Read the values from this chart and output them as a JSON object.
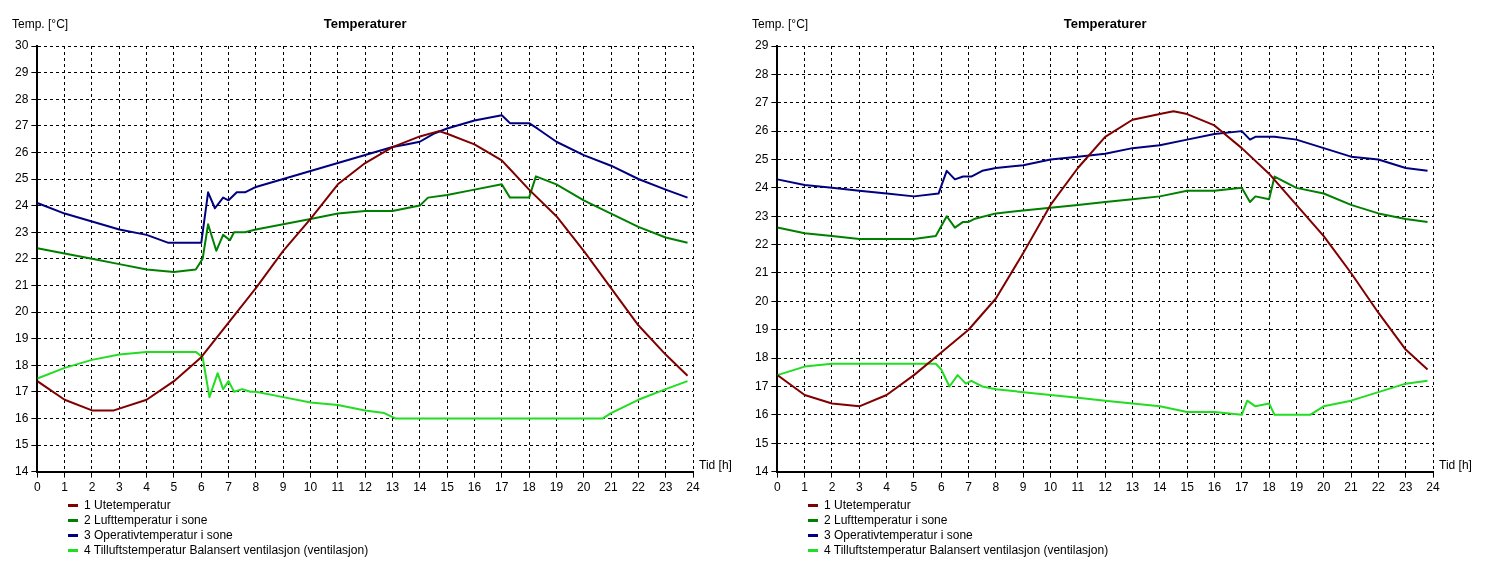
{
  "chart_data": [
    {
      "type": "line",
      "title": "Temperaturer",
      "xlabel": "Tid [h]",
      "ylabel": "Temp. [°C]",
      "xlim": [
        0,
        24
      ],
      "xticks": [
        0,
        1,
        2,
        3,
        4,
        5,
        6,
        7,
        8,
        9,
        10,
        11,
        12,
        13,
        14,
        15,
        16,
        17,
        18,
        19,
        20,
        21,
        22,
        23,
        24
      ],
      "ylim": [
        14,
        30
      ],
      "yticks": [
        14,
        15,
        16,
        17,
        18,
        19,
        20,
        21,
        22,
        23,
        24,
        25,
        26,
        27,
        28,
        29,
        30
      ],
      "grid": true,
      "legend": "bottom left",
      "series": [
        {
          "name": "1 Utetemperatur",
          "color": "#800000",
          "x": [
            0,
            1,
            2,
            2.8,
            4,
            5,
            6,
            7,
            8,
            9,
            10,
            11,
            12,
            13,
            14,
            14.7,
            15,
            16,
            17,
            18,
            19,
            20,
            21,
            22,
            23,
            23.8
          ],
          "values": [
            17.4,
            16.7,
            16.3,
            16.3,
            16.7,
            17.4,
            18.3,
            19.6,
            20.9,
            22.3,
            23.5,
            24.8,
            25.6,
            26.2,
            26.6,
            26.8,
            26.7,
            26.3,
            25.7,
            24.6,
            23.6,
            22.3,
            20.9,
            19.5,
            18.4,
            17.6
          ]
        },
        {
          "name": "2 Lufttemperatur i sone",
          "color": "#008000",
          "x": [
            0,
            1,
            2,
            3,
            4,
            5,
            5.8,
            6.05,
            6.25,
            6.55,
            6.8,
            7.05,
            7.2,
            7.6,
            8,
            9,
            10,
            11,
            12,
            13,
            14,
            14.3,
            15,
            16,
            17,
            17.3,
            18,
            18.25,
            19,
            20,
            21,
            22,
            23,
            23.8
          ],
          "values": [
            22.4,
            22.2,
            22.0,
            21.8,
            21.6,
            21.5,
            21.6,
            22.0,
            23.3,
            22.3,
            22.9,
            22.7,
            23.0,
            23.0,
            23.1,
            23.3,
            23.5,
            23.7,
            23.8,
            23.8,
            24.0,
            24.3,
            24.4,
            24.6,
            24.8,
            24.3,
            24.3,
            25.1,
            24.8,
            24.2,
            23.7,
            23.2,
            22.8,
            22.6
          ]
        },
        {
          "name": "3 Operativtemperatur i sone",
          "color": "#000080",
          "x": [
            0,
            1,
            2,
            3,
            4,
            4.8,
            6.0,
            6.25,
            6.5,
            6.8,
            7,
            7.3,
            7.6,
            8,
            9,
            10,
            11,
            12,
            13,
            13.5,
            14,
            14.5,
            15,
            16,
            17,
            17.3,
            18,
            18.3,
            19,
            20,
            21,
            22,
            23,
            23.8
          ],
          "values": [
            24.1,
            23.7,
            23.4,
            23.1,
            22.9,
            22.6,
            22.6,
            24.5,
            23.9,
            24.3,
            24.2,
            24.5,
            24.5,
            24.7,
            25.0,
            25.3,
            25.6,
            25.9,
            26.2,
            26.3,
            26.4,
            26.7,
            26.9,
            27.2,
            27.4,
            27.1,
            27.1,
            26.9,
            26.4,
            25.9,
            25.5,
            25.0,
            24.6,
            24.3
          ]
        },
        {
          "name": "4 Tilluftstemperatur Balansert ventilasjon (ventilasjon)",
          "color": "#22dd22",
          "x": [
            0,
            1,
            2,
            3,
            4,
            5,
            5.8,
            6.05,
            6.3,
            6.6,
            6.8,
            7.0,
            7.2,
            7.5,
            7.8,
            8,
            9,
            10,
            11,
            12,
            12.7,
            13.1,
            20.7,
            21,
            22,
            23,
            23.8
          ],
          "values": [
            17.5,
            17.9,
            18.2,
            18.4,
            18.5,
            18.5,
            18.5,
            18.3,
            16.8,
            17.7,
            17.1,
            17.4,
            17.0,
            17.1,
            17.0,
            17.0,
            16.8,
            16.6,
            16.5,
            16.3,
            16.2,
            16.0,
            16.0,
            16.2,
            16.7,
            17.1,
            17.4
          ]
        }
      ]
    },
    {
      "type": "line",
      "title": "Temperaturer",
      "xlabel": "Tid [h]",
      "ylabel": "Temp. [°C]",
      "xlim": [
        0,
        24
      ],
      "xticks": [
        0,
        1,
        2,
        3,
        4,
        5,
        6,
        7,
        8,
        9,
        10,
        11,
        12,
        13,
        14,
        15,
        16,
        17,
        18,
        19,
        20,
        21,
        22,
        23,
        24
      ],
      "ylim": [
        14,
        29
      ],
      "yticks": [
        14,
        15,
        16,
        17,
        18,
        19,
        20,
        21,
        22,
        23,
        24,
        25,
        26,
        27,
        28,
        29
      ],
      "grid": true,
      "legend": "bottom left",
      "series": [
        {
          "name": "1 Utetemperatur",
          "color": "#800000",
          "x": [
            0,
            1,
            2,
            3,
            4,
            5,
            6,
            7,
            8,
            9,
            10,
            11,
            12,
            13,
            14,
            14.5,
            15,
            16,
            17,
            18,
            19,
            20,
            21,
            22,
            23,
            23.8
          ],
          "values": [
            17.4,
            16.7,
            16.4,
            16.3,
            16.7,
            17.4,
            18.2,
            19.0,
            20.1,
            21.7,
            23.4,
            24.7,
            25.8,
            26.4,
            26.6,
            26.7,
            26.6,
            26.2,
            25.4,
            24.5,
            23.4,
            22.3,
            21.0,
            19.6,
            18.3,
            17.6
          ]
        },
        {
          "name": "2 Lufttemperatur i sone",
          "color": "#008000",
          "x": [
            0,
            1,
            2,
            3,
            4,
            5,
            5.8,
            6.2,
            6.5,
            6.8,
            7,
            7.2,
            8,
            9,
            10,
            11,
            12,
            13,
            14,
            15,
            16,
            17,
            17.3,
            17.5,
            18,
            18.2,
            19,
            20,
            21,
            22,
            23,
            23.8
          ],
          "values": [
            22.6,
            22.4,
            22.3,
            22.2,
            22.2,
            22.2,
            22.3,
            23.0,
            22.6,
            22.8,
            22.8,
            22.9,
            23.1,
            23.2,
            23.3,
            23.4,
            23.5,
            23.6,
            23.7,
            23.9,
            23.9,
            24.0,
            23.5,
            23.7,
            23.6,
            24.4,
            24.0,
            23.8,
            23.4,
            23.1,
            22.9,
            22.8
          ]
        },
        {
          "name": "3 Operativtemperatur i sone",
          "color": "#000080",
          "x": [
            0,
            1,
            2,
            3,
            4,
            5,
            5.9,
            6.2,
            6.5,
            6.8,
            7.1,
            7.5,
            8,
            9,
            10,
            11,
            12,
            13,
            14,
            15,
            16,
            17,
            17.3,
            17.5,
            18,
            18.2,
            19,
            20,
            21,
            22,
            23,
            23.8
          ],
          "values": [
            24.3,
            24.1,
            24.0,
            23.9,
            23.8,
            23.7,
            23.8,
            24.6,
            24.3,
            24.4,
            24.4,
            24.6,
            24.7,
            24.8,
            25.0,
            25.1,
            25.2,
            25.4,
            25.5,
            25.7,
            25.9,
            26.0,
            25.7,
            25.8,
            25.8,
            25.8,
            25.7,
            25.4,
            25.1,
            25.0,
            24.7,
            24.6
          ]
        },
        {
          "name": "4 Tilluftstemperatur Balansert ventilasjon (ventilasjon)",
          "color": "#22dd22",
          "x": [
            0,
            1,
            2,
            3,
            4,
            5,
            5.8,
            6.0,
            6.3,
            6.6,
            6.9,
            7.1,
            7.5,
            8,
            9,
            10,
            11,
            12,
            13,
            14,
            15,
            16,
            17,
            17.2,
            17.5,
            18,
            18.2,
            19,
            19.5,
            20,
            21,
            22,
            23,
            23.8
          ],
          "values": [
            17.4,
            17.7,
            17.8,
            17.8,
            17.8,
            17.8,
            17.8,
            17.6,
            17.0,
            17.4,
            17.1,
            17.2,
            17.0,
            16.9,
            16.8,
            16.7,
            16.6,
            16.5,
            16.4,
            16.3,
            16.1,
            16.1,
            16.0,
            16.5,
            16.3,
            16.4,
            16.0,
            16.0,
            16.0,
            16.3,
            16.5,
            16.8,
            17.1,
            17.2
          ]
        }
      ]
    }
  ]
}
